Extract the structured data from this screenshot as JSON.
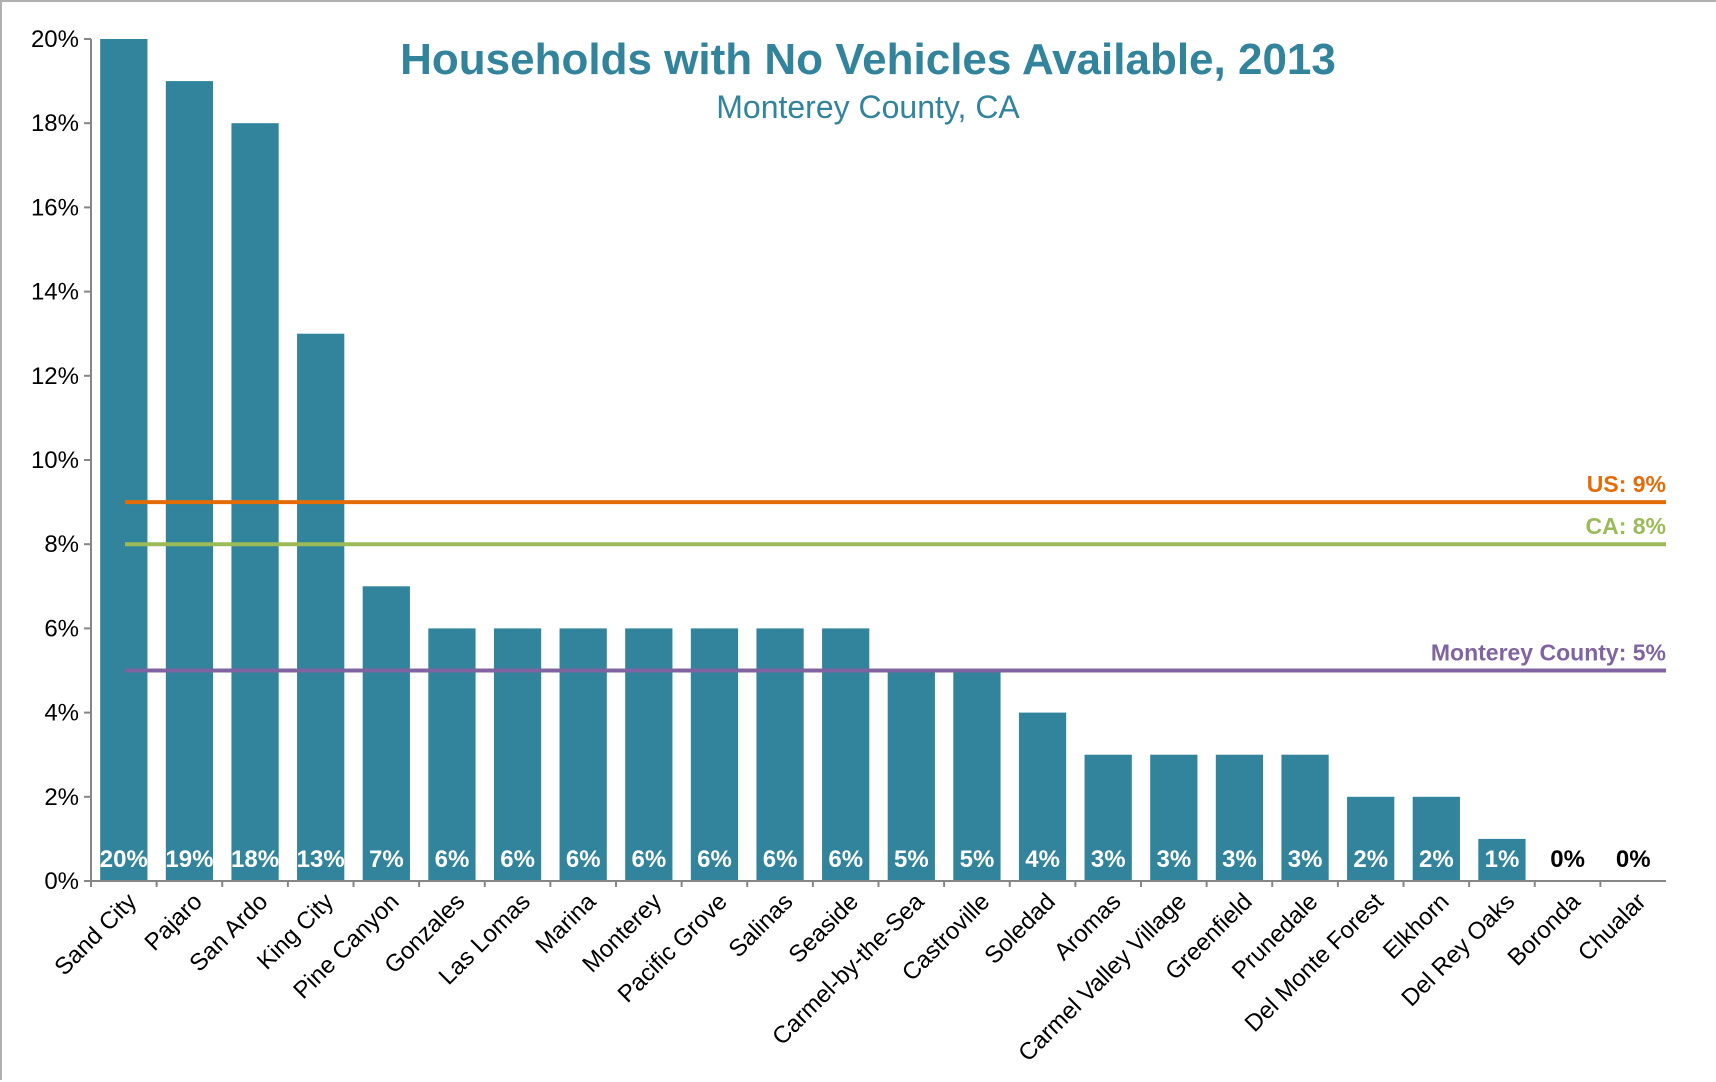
{
  "chart_data": {
    "type": "bar",
    "title": "Households with No Vehicles Available, 2013",
    "subtitle": "Monterey County, CA",
    "categories": [
      "Sand City",
      "Pajaro",
      "San Ardo",
      "King City",
      "Pine Canyon",
      "Gonzales",
      "Las Lomas",
      "Marina",
      "Monterey",
      "Pacific Grove",
      "Salinas",
      "Seaside",
      "Carmel-by-the-Sea",
      "Castroville",
      "Soledad",
      "Aromas",
      "Carmel Valley Village",
      "Greenfield",
      "Prunedale",
      "Del Monte Forest",
      "Elkhorn",
      "Del Rey Oaks",
      "Boronda",
      "Chualar"
    ],
    "values": [
      20,
      19,
      18,
      13,
      7,
      6,
      6,
      6,
      6,
      6,
      6,
      6,
      5,
      5,
      4,
      3,
      3,
      3,
      3,
      2,
      2,
      1,
      0,
      0
    ],
    "data_labels": [
      "20%",
      "19%",
      "18%",
      "13%",
      "7%",
      "6%",
      "6%",
      "6%",
      "6%",
      "6%",
      "6%",
      "6%",
      "5%",
      "5%",
      "4%",
      "3%",
      "3%",
      "3%",
      "3%",
      "2%",
      "2%",
      "1%",
      "0%",
      "0%"
    ],
    "ylim": [
      0,
      20
    ],
    "yticks": [
      "0%",
      "2%",
      "4%",
      "6%",
      "8%",
      "10%",
      "12%",
      "14%",
      "16%",
      "18%",
      "20%"
    ],
    "reference_lines": [
      {
        "label": "US: 9%",
        "value": 9,
        "color": "#e36c09"
      },
      {
        "label": "CA: 8%",
        "value": 8,
        "color": "#9bbb59"
      },
      {
        "label": "Monterey County: 5%",
        "value": 5,
        "color": "#8064a2"
      }
    ],
    "bar_color": "#31849b",
    "data_label_color_inside": "#ffffff",
    "data_label_color_outside": "#000000",
    "grid": false,
    "legend": "none"
  }
}
